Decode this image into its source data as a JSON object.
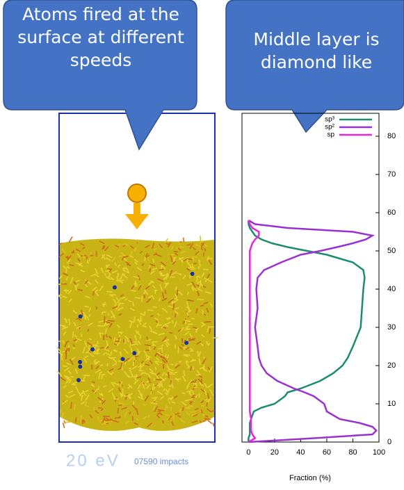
{
  "callouts": [
    "Atoms fired at the surface at different speeds",
    "Middle layer is diamond like"
  ],
  "simulation": {
    "energy": "20 eV",
    "impacts": "07590 impacts"
  },
  "chart_data": {
    "type": "line",
    "orientation": "horizontal",
    "x_label": "Fraction (%)",
    "y": [
      0,
      1,
      2,
      3,
      4,
      5,
      6,
      8,
      9,
      10,
      12,
      13,
      14,
      16,
      18,
      20,
      22,
      25,
      30,
      35,
      40,
      43,
      45,
      47,
      49,
      50,
      51,
      52,
      53,
      54,
      55,
      56,
      57,
      58
    ],
    "series": [
      {
        "name": "sp³",
        "color": "#1a8c70",
        "values": [
          0,
          0,
          1,
          1,
          1,
          1,
          2,
          4,
          10,
          20,
          28,
          30,
          40,
          55,
          65,
          72,
          76,
          80,
          86,
          87,
          88,
          89,
          88,
          80,
          60,
          45,
          30,
          18,
          10,
          5,
          3,
          1,
          0,
          0
        ]
      },
      {
        "name": "sp²",
        "color": "#9b30d0",
        "values": [
          0,
          50,
          95,
          98,
          95,
          85,
          70,
          60,
          59,
          58,
          50,
          43,
          35,
          22,
          14,
          10,
          8,
          7,
          5,
          7,
          6,
          7,
          12,
          25,
          40,
          55,
          68,
          80,
          90,
          95,
          80,
          30,
          5,
          0
        ]
      },
      {
        "name": "sp",
        "color": "#ee22dd",
        "values": [
          0,
          5,
          3,
          2,
          2,
          2,
          2,
          1,
          1,
          1,
          1,
          1,
          1,
          1,
          1,
          1,
          1,
          1,
          1,
          1,
          1,
          1,
          1,
          1,
          1,
          1,
          2,
          3,
          5,
          8,
          8,
          3,
          1,
          0
        ]
      }
    ],
    "xlim": [
      -5,
      100
    ],
    "xticks": [
      0,
      20,
      40,
      60,
      80,
      100
    ],
    "ylim": [
      0,
      86
    ],
    "yticks": [
      0,
      10,
      20,
      30,
      40,
      50,
      60,
      70,
      80
    ],
    "legend": "top-right"
  }
}
